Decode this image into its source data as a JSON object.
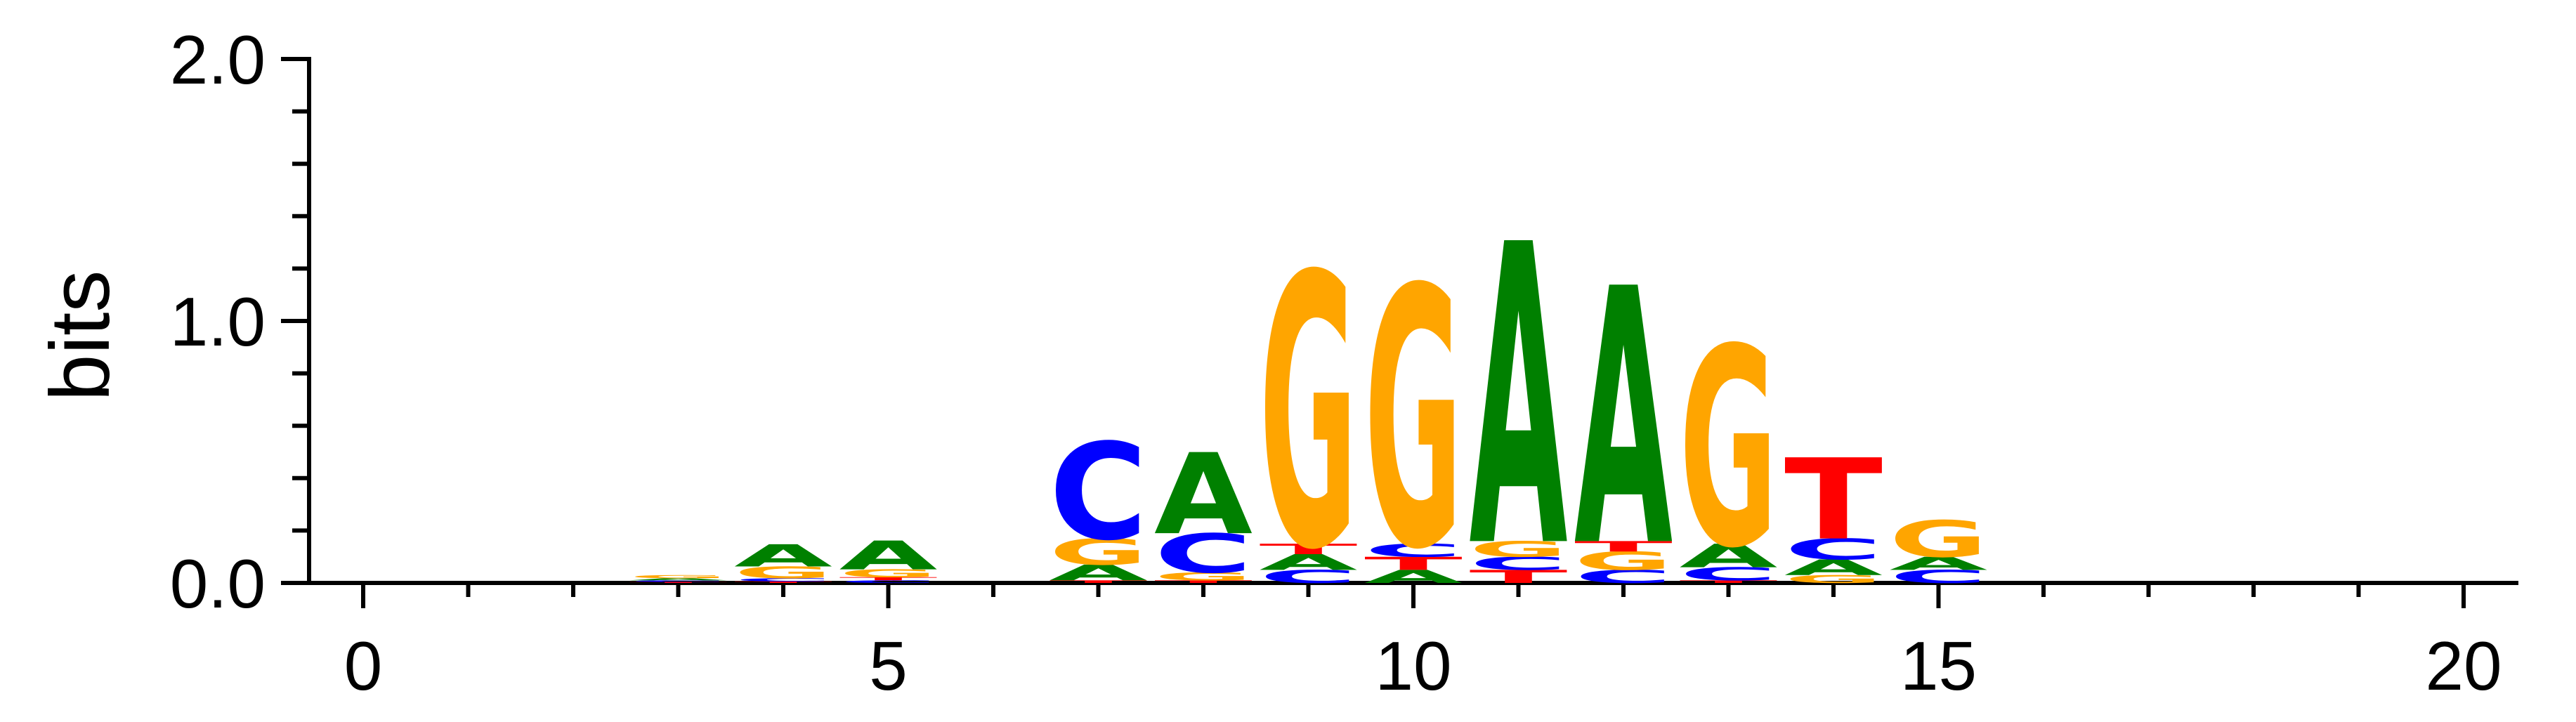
{
  "chart_data": {
    "type": "sequence-logo",
    "ylabel": "bits",
    "ylim": [
      0,
      2.0
    ],
    "xlim": [
      -0.5,
      20.5
    ],
    "y_ticks": [
      {
        "value": 0.0,
        "label": "0.0"
      },
      {
        "value": 1.0,
        "label": "1.0"
      },
      {
        "value": 2.0,
        "label": "2.0"
      }
    ],
    "x_ticks": [
      {
        "value": 0,
        "label": "0"
      },
      {
        "value": 5,
        "label": "5"
      },
      {
        "value": 10,
        "label": "10"
      },
      {
        "value": 15,
        "label": "15"
      },
      {
        "value": 20,
        "label": "20"
      }
    ],
    "colors": {
      "A": "#008000",
      "C": "#0000ff",
      "G": "#ffa500",
      "T": "#ff0000"
    },
    "positions": [
      {
        "pos": 3,
        "stack": [
          {
            "base": "T",
            "height": 0.004
          },
          {
            "base": "C",
            "height": 0.006
          },
          {
            "base": "A",
            "height": 0.008
          },
          {
            "base": "G",
            "height": 0.012
          }
        ]
      },
      {
        "pos": 4,
        "stack": [
          {
            "base": "T",
            "height": 0.006
          },
          {
            "base": "C",
            "height": 0.012
          },
          {
            "base": "G",
            "height": 0.045
          },
          {
            "base": "A",
            "height": 0.085
          }
        ]
      },
      {
        "pos": 5,
        "stack": [
          {
            "base": "C",
            "height": 0.01
          },
          {
            "base": "T",
            "height": 0.012
          },
          {
            "base": "G",
            "height": 0.03
          },
          {
            "base": "A",
            "height": 0.11
          }
        ]
      },
      {
        "pos": 7,
        "stack": [
          {
            "base": "T",
            "height": 0.01
          },
          {
            "base": "A",
            "height": 0.06
          },
          {
            "base": "G",
            "height": 0.1
          },
          {
            "base": "C",
            "height": 0.37
          }
        ]
      },
      {
        "pos": 8,
        "stack": [
          {
            "base": "T",
            "height": 0.01
          },
          {
            "base": "G",
            "height": 0.03
          },
          {
            "base": "C",
            "height": 0.15
          },
          {
            "base": "A",
            "height": 0.31
          }
        ]
      },
      {
        "pos": 9,
        "stack": [
          {
            "base": "C",
            "height": 0.05
          },
          {
            "base": "A",
            "height": 0.06
          },
          {
            "base": "T",
            "height": 0.04
          },
          {
            "base": "G",
            "height": 1.04
          }
        ]
      },
      {
        "pos": 10,
        "stack": [
          {
            "base": "A",
            "height": 0.05
          },
          {
            "base": "T",
            "height": 0.05
          },
          {
            "base": "C",
            "height": 0.05
          },
          {
            "base": "G",
            "height": 0.99
          }
        ]
      },
      {
        "pos": 11,
        "stack": [
          {
            "base": "T",
            "height": 0.05
          },
          {
            "base": "C",
            "height": 0.05
          },
          {
            "base": "G",
            "height": 0.06
          },
          {
            "base": "A",
            "height": 1.15
          }
        ]
      },
      {
        "pos": 12,
        "stack": [
          {
            "base": "C",
            "height": 0.05
          },
          {
            "base": "G",
            "height": 0.07
          },
          {
            "base": "T",
            "height": 0.04
          },
          {
            "base": "A",
            "height": 0.98
          }
        ]
      },
      {
        "pos": 13,
        "stack": [
          {
            "base": "T",
            "height": 0.01
          },
          {
            "base": "C",
            "height": 0.05
          },
          {
            "base": "A",
            "height": 0.09
          },
          {
            "base": "G",
            "height": 0.76
          }
        ]
      },
      {
        "pos": 14,
        "stack": [
          {
            "base": "G",
            "height": 0.03
          },
          {
            "base": "A",
            "height": 0.06
          },
          {
            "base": "C",
            "height": 0.08
          },
          {
            "base": "T",
            "height": 0.31
          }
        ]
      },
      {
        "pos": 15,
        "stack": [
          {
            "base": "C",
            "height": 0.05
          },
          {
            "base": "A",
            "height": 0.05
          },
          {
            "base": "G",
            "height": 0.14
          }
        ]
      }
    ]
  }
}
